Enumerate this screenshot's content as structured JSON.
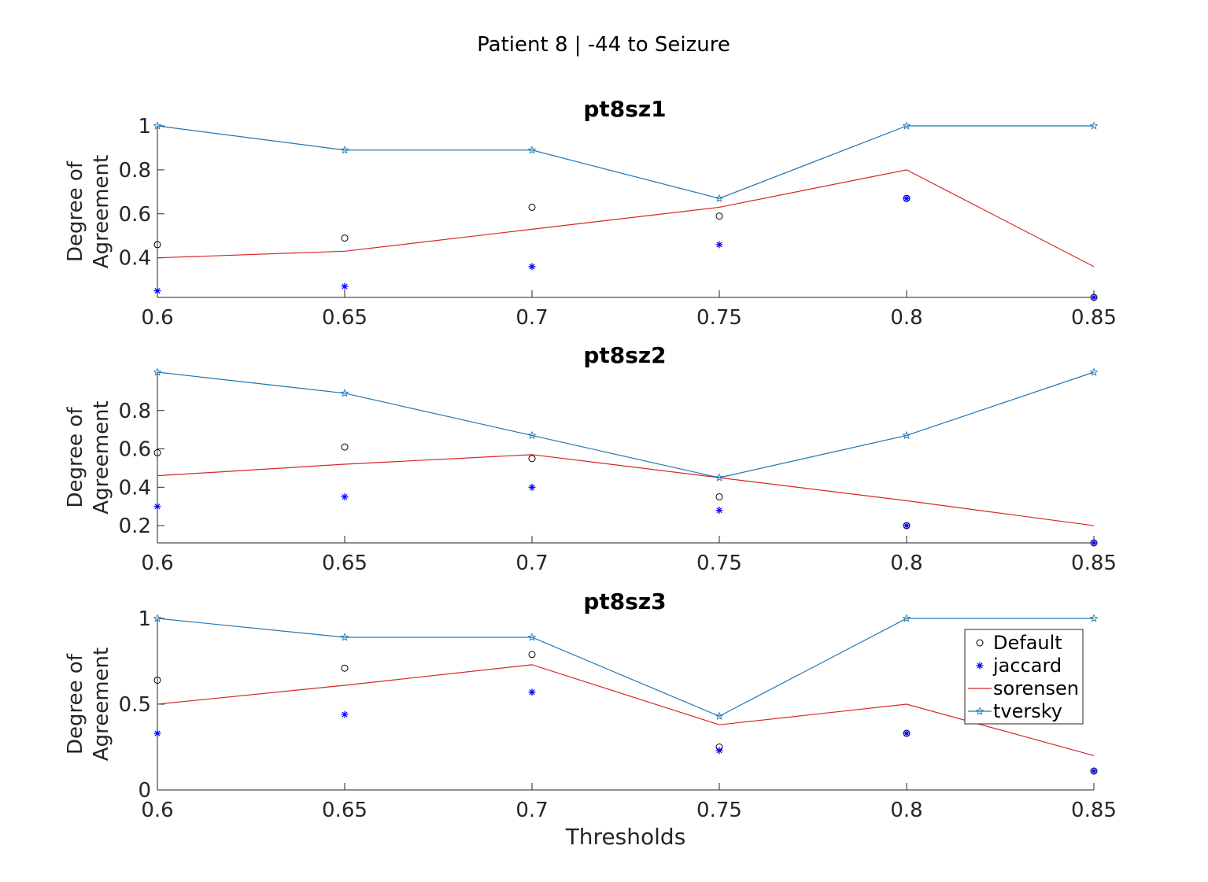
{
  "figure": {
    "suptitle": "Patient 8 | -44 to Seizure",
    "xlabel": "Thresholds",
    "ylabel_line1": "Degree of",
    "ylabel_line2": "Agreement"
  },
  "legend": {
    "placement": "inside upper-right of bottom panel",
    "entries": [
      {
        "label": "Default",
        "marker": "circle",
        "color": "#000000"
      },
      {
        "label": "jaccard",
        "marker": "asterisk",
        "color": "#0000ff"
      },
      {
        "label": "sorensen",
        "marker": "line",
        "color": "#d62728"
      },
      {
        "label": "tversky",
        "marker": "star-line",
        "color": "#1f77b4"
      }
    ]
  },
  "chart_data": [
    {
      "type": "line",
      "title": "pt8sz1",
      "xlabel": "",
      "ylabel": "Degree of Agreement",
      "x": [
        0.6,
        0.65,
        0.7,
        0.75,
        0.8,
        0.85
      ],
      "xlim": [
        0.6,
        0.85
      ],
      "ylim": [
        0.22,
        1.0
      ],
      "xticks": [
        "0.6",
        "0.65",
        "0.7",
        "0.75",
        "0.8",
        "0.85"
      ],
      "yticks": [
        {
          "v": 0.4,
          "t": "0.4"
        },
        {
          "v": 0.6,
          "t": "0.6"
        },
        {
          "v": 0.8,
          "t": "0.8"
        },
        {
          "v": 1.0,
          "t": "1"
        }
      ],
      "series": [
        {
          "name": "Default",
          "style": "markers-circle",
          "color": "#000000",
          "values": [
            0.46,
            0.49,
            0.63,
            0.59,
            0.67,
            0.22
          ]
        },
        {
          "name": "jaccard",
          "style": "markers-asterisk",
          "color": "#0000ff",
          "values": [
            0.25,
            0.27,
            0.36,
            0.46,
            0.67,
            0.22
          ]
        },
        {
          "name": "sorensen",
          "style": "line",
          "color": "#d62728",
          "values": [
            0.4,
            0.43,
            0.53,
            0.63,
            0.8,
            0.36
          ]
        },
        {
          "name": "tversky",
          "style": "line-star",
          "color": "#1f77b4",
          "values": [
            1.0,
            0.89,
            0.89,
            0.67,
            1.0,
            1.0
          ]
        }
      ]
    },
    {
      "type": "line",
      "title": "pt8sz2",
      "xlabel": "",
      "ylabel": "Degree of Agreement",
      "x": [
        0.6,
        0.65,
        0.7,
        0.75,
        0.8,
        0.85
      ],
      "xlim": [
        0.6,
        0.85
      ],
      "ylim": [
        0.11,
        1.0
      ],
      "xticks": [
        "0.6",
        "0.65",
        "0.7",
        "0.75",
        "0.8",
        "0.85"
      ],
      "yticks": [
        {
          "v": 0.2,
          "t": "0.2"
        },
        {
          "v": 0.4,
          "t": "0.4"
        },
        {
          "v": 0.6,
          "t": "0.6"
        },
        {
          "v": 0.8,
          "t": "0.8"
        }
      ],
      "series": [
        {
          "name": "Default",
          "style": "markers-circle",
          "color": "#000000",
          "values": [
            0.58,
            0.61,
            0.55,
            0.35,
            0.2,
            0.11
          ]
        },
        {
          "name": "jaccard",
          "style": "markers-asterisk",
          "color": "#0000ff",
          "values": [
            0.3,
            0.35,
            0.4,
            0.28,
            0.2,
            0.11
          ]
        },
        {
          "name": "sorensen",
          "style": "line",
          "color": "#d62728",
          "values": [
            0.46,
            0.52,
            0.57,
            0.45,
            0.33,
            0.2
          ]
        },
        {
          "name": "tversky",
          "style": "line-star",
          "color": "#1f77b4",
          "values": [
            1.0,
            0.89,
            0.67,
            0.45,
            0.67,
            1.0
          ]
        }
      ]
    },
    {
      "type": "line",
      "title": "pt8sz3",
      "xlabel": "Thresholds",
      "ylabel": "Degree of Agreement",
      "x": [
        0.6,
        0.65,
        0.7,
        0.75,
        0.8,
        0.85
      ],
      "xlim": [
        0.6,
        0.85
      ],
      "ylim": [
        0.0,
        1.0
      ],
      "xticks": [
        "0.6",
        "0.65",
        "0.7",
        "0.75",
        "0.8",
        "0.85"
      ],
      "yticks": [
        {
          "v": 0.0,
          "t": "0"
        },
        {
          "v": 0.5,
          "t": "0.5"
        },
        {
          "v": 1.0,
          "t": "1"
        }
      ],
      "series": [
        {
          "name": "Default",
          "style": "markers-circle",
          "color": "#000000",
          "values": [
            0.64,
            0.71,
            0.79,
            0.25,
            0.33,
            0.11
          ]
        },
        {
          "name": "jaccard",
          "style": "markers-asterisk",
          "color": "#0000ff",
          "values": [
            0.33,
            0.44,
            0.57,
            0.23,
            0.33,
            0.11
          ]
        },
        {
          "name": "sorensen",
          "style": "line",
          "color": "#d62728",
          "values": [
            0.5,
            0.61,
            0.73,
            0.38,
            0.5,
            0.2
          ]
        },
        {
          "name": "tversky",
          "style": "line-star",
          "color": "#1f77b4",
          "values": [
            1.0,
            0.89,
            0.89,
            0.43,
            1.0,
            1.0
          ]
        }
      ]
    }
  ]
}
